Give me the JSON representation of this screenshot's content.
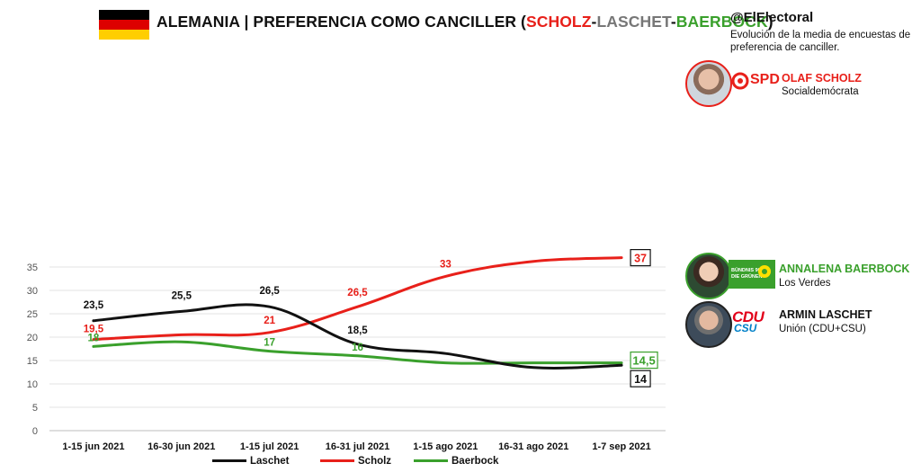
{
  "header": {
    "title_prefix": "ALEMANIA | PREFERENCIA COMO CANCILLER (",
    "title_scholz": "SCHOLZ",
    "title_dash1": "-",
    "title_laschet": "LASCHET",
    "title_dash2": "-",
    "title_baerbock": "BAERBOCK",
    "title_suffix": ")",
    "handle": "@ElElectoral",
    "subtitle": "Evolución de la media de encuestas de preferencia de canciller."
  },
  "candidates": {
    "scholz": {
      "party_logo": "SPD",
      "name": "OLAF SCHOLZ",
      "party": "Socialdemócrata",
      "color": "#e8201a"
    },
    "baerbock": {
      "party_logo_line1": "BÜNDNIS 90",
      "party_logo_line2": "DIE GRÜNEN",
      "name": "ANNALENA BAERBOCK",
      "party": "Los Verdes",
      "color": "#3aa02c"
    },
    "laschet": {
      "party_logo_line1": "CDU",
      "party_logo_line2": "CSU",
      "name": "ARMIN LASCHET",
      "party": "Unión (CDU+CSU)",
      "color": "#111111"
    }
  },
  "chart_data": {
    "type": "line",
    "categories": [
      "1-15 jun 2021",
      "16-30 jun 2021",
      "1-15 jul 2021",
      "16-31 jul 2021",
      "1-15 ago 2021",
      "16-31 ago 2021",
      "1-7 sep 2021"
    ],
    "ylim": [
      0,
      37.5
    ],
    "yticks": [
      0,
      5,
      10,
      15,
      20,
      25,
      30,
      35
    ],
    "grid": true,
    "legend_position": "bottom",
    "series": [
      {
        "name": "Laschet",
        "color": "#111111",
        "values": [
          23.5,
          25.5,
          26.5,
          18.5,
          16.5,
          13.5,
          14
        ],
        "labels": [
          "23,5",
          "25,5",
          "26,5",
          "18,5",
          null,
          null,
          "14"
        ]
      },
      {
        "name": "Scholz",
        "color": "#e8201a",
        "values": [
          19.5,
          20.5,
          21,
          26.5,
          33,
          36.2,
          37
        ],
        "labels": [
          "19,5",
          null,
          "21",
          "26,5",
          "33",
          null,
          "37"
        ]
      },
      {
        "name": "Baerbock",
        "color": "#3aa02c",
        "values": [
          18,
          19,
          17,
          16,
          14.5,
          14.5,
          14.5
        ],
        "labels": [
          "18",
          null,
          "17",
          "16",
          null,
          null,
          "14,5"
        ]
      }
    ]
  }
}
